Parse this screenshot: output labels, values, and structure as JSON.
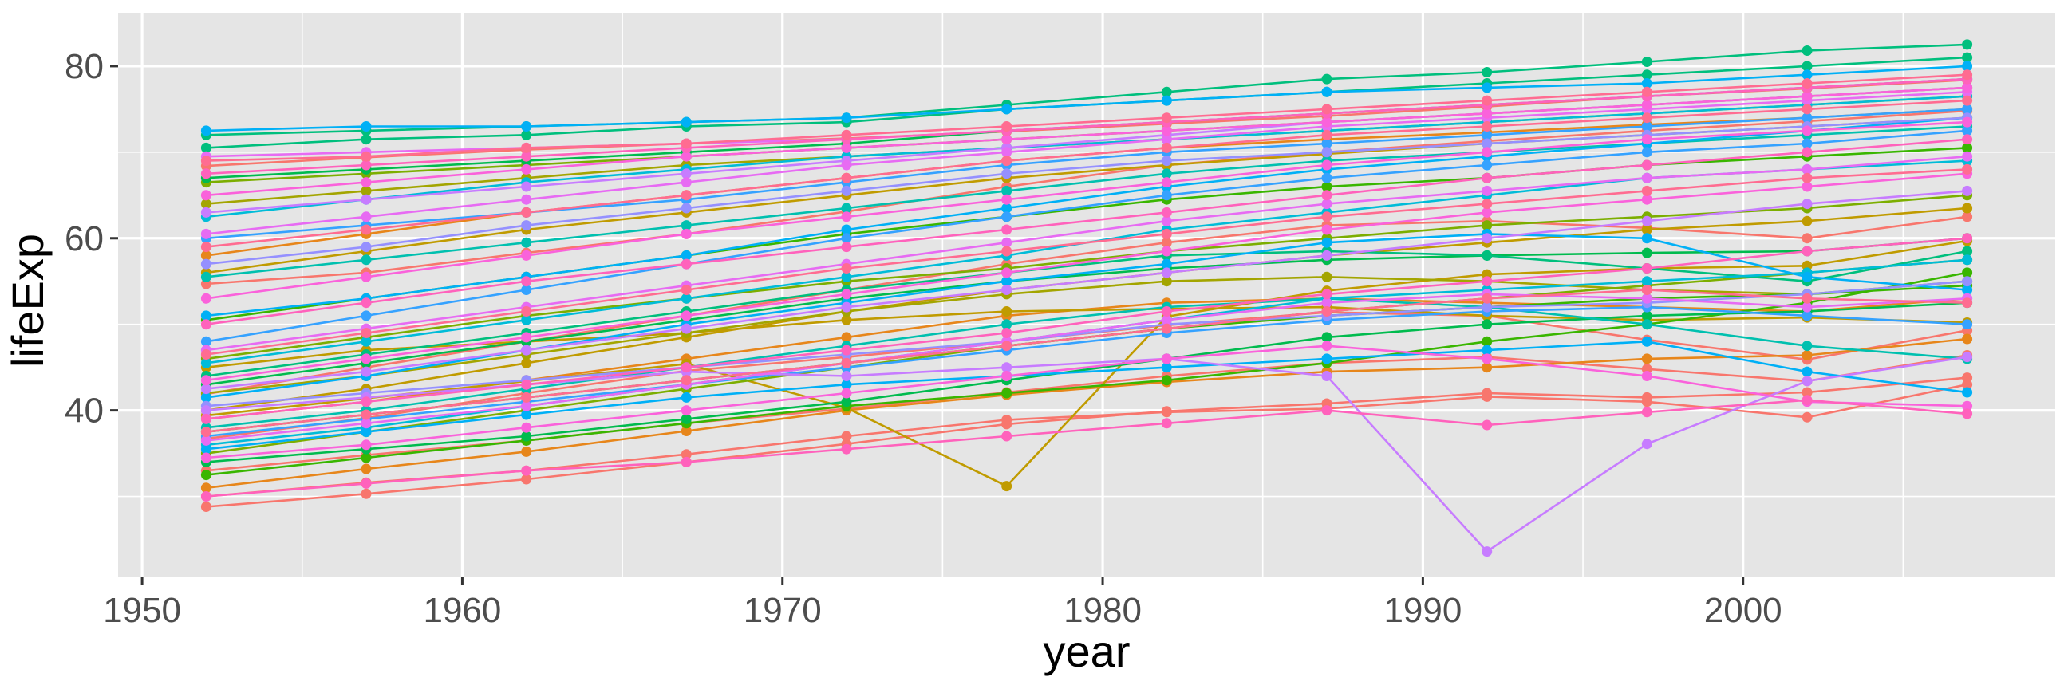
{
  "chart_data": {
    "type": "line",
    "title": "",
    "xlabel": "year",
    "ylabel": "lifeExp",
    "xlim": [
      1949.25,
      2009.75
    ],
    "ylim": [
      20.6,
      86.2
    ],
    "x_ticks": [
      1950,
      1960,
      1970,
      1980,
      1990,
      2000
    ],
    "x_tick_labels": [
      "1950",
      "1960",
      "1970",
      "1980",
      "1990",
      "2000"
    ],
    "y_ticks": [
      40,
      60,
      80
    ],
    "y_tick_labels": [
      "40",
      "60",
      "80"
    ],
    "x_minor_ticks": [
      1955,
      1965,
      1975,
      1985,
      1995,
      2005
    ],
    "y_minor_ticks": [
      30,
      50,
      70
    ],
    "grid": true,
    "legend": "none",
    "x": [
      1952,
      1957,
      1962,
      1967,
      1972,
      1977,
      1982,
      1987,
      1992,
      1997,
      2002,
      2007
    ],
    "panel_background": "#e5e5e5",
    "grid_color": "#ffffff",
    "series": [
      {
        "color": "#F8766D",
        "values": [
          28.8,
          30.3,
          32.0,
          34.0,
          36.1,
          38.4,
          39.9,
          40.8,
          42.0,
          41.5,
          42.1,
          43.8
        ]
      },
      {
        "color": "#F8766D",
        "values": [
          30.0,
          31.6,
          33.0,
          34.9,
          37.0,
          38.9,
          39.8,
          40.2,
          41.6,
          41.0,
          39.2,
          43.0
        ]
      },
      {
        "color": "#F8766D",
        "values": [
          33.0,
          34.8,
          36.5,
          38.5,
          40.2,
          42.1,
          44.0,
          45.5,
          46.2,
          44.8,
          43.4,
          46.4
        ]
      },
      {
        "color": "#F8766D",
        "values": [
          36.7,
          39.1,
          42.0,
          44.6,
          46.2,
          48.0,
          49.9,
          51.4,
          51.0,
          48.2,
          45.9,
          49.3
        ]
      },
      {
        "color": "#F8766D",
        "values": [
          41.9,
          45.0,
          48.0,
          51.0,
          54.0,
          57.0,
          59.5,
          61.5,
          62.0,
          61.2,
          60.0,
          62.5
        ]
      },
      {
        "color": "#F8766D",
        "values": [
          54.7,
          56.0,
          58.3,
          60.5,
          63.1,
          66.0,
          68.5,
          70.0,
          71.3,
          72.5,
          73.6,
          74.8
        ]
      },
      {
        "color": "#F8766D",
        "values": [
          68.4,
          69.4,
          70.3,
          71.0,
          71.6,
          72.4,
          73.3,
          74.2,
          75.3,
          76.5,
          77.4,
          78.4
        ]
      },
      {
        "color": "#E7861B",
        "values": [
          31.0,
          33.2,
          35.2,
          37.6,
          40.0,
          41.8,
          43.3,
          44.5,
          45.0,
          46.0,
          46.4,
          48.3
        ]
      },
      {
        "color": "#E7861B",
        "values": [
          39.0,
          41.0,
          43.5,
          46.0,
          48.5,
          51.0,
          52.5,
          53.0,
          52.5,
          52.0,
          51.5,
          53.0
        ]
      },
      {
        "color": "#E7861B",
        "values": [
          58.0,
          60.5,
          63.0,
          65.0,
          67.0,
          69.0,
          70.5,
          71.5,
          72.3,
          73.2,
          74.0,
          75.0
        ]
      },
      {
        "color": "#C09B00",
        "values": [
          39.4,
          41.4,
          43.4,
          45.4,
          40.3,
          31.2,
          50.9,
          53.9,
          55.8,
          56.5,
          56.8,
          59.7
        ]
      },
      {
        "color": "#C09B00",
        "values": [
          45.0,
          47.0,
          48.0,
          49.0,
          50.5,
          51.5,
          51.8,
          52.0,
          51.0,
          50.5,
          50.8,
          50.2
        ]
      },
      {
        "color": "#C09B00",
        "values": [
          56.0,
          58.5,
          61.0,
          63.0,
          65.0,
          67.0,
          68.5,
          69.8,
          71.0,
          72.0,
          73.0,
          74.0
        ]
      },
      {
        "color": "#C09B00",
        "values": [
          40.0,
          42.5,
          45.5,
          48.5,
          51.5,
          54.0,
          56.0,
          58.0,
          59.5,
          61.0,
          62.0,
          63.5
        ]
      },
      {
        "color": "#A3A500",
        "values": [
          42.0,
          44.0,
          46.5,
          49.0,
          51.5,
          53.5,
          55.0,
          55.5,
          55.0,
          54.0,
          53.5,
          55.0
        ]
      },
      {
        "color": "#A3A500",
        "values": [
          64.0,
          65.5,
          67.0,
          68.5,
          69.5,
          70.5,
          71.5,
          72.5,
          73.5,
          74.5,
          75.5,
          76.5
        ]
      },
      {
        "color": "#7CAE00",
        "values": [
          35.0,
          37.5,
          40.0,
          42.5,
          45.0,
          47.5,
          49.5,
          51.5,
          53.0,
          54.5,
          56.0,
          57.5
        ]
      },
      {
        "color": "#7CAE00",
        "values": [
          46.0,
          48.5,
          51.0,
          53.0,
          55.0,
          56.5,
          58.5,
          60.0,
          61.5,
          62.5,
          63.5,
          65.0
        ]
      },
      {
        "color": "#7CAE00",
        "values": [
          66.5,
          67.5,
          68.5,
          69.5,
          70.5,
          71.5,
          72.5,
          73.5,
          74.5,
          75.5,
          76.5,
          77.5
        ]
      },
      {
        "color": "#39B600",
        "values": [
          32.5,
          34.5,
          36.5,
          38.5,
          40.5,
          42.0,
          43.5,
          45.5,
          48.0,
          50.0,
          52.5,
          56.0
        ]
      },
      {
        "color": "#39B600",
        "values": [
          37.5,
          39.5,
          41.5,
          43.5,
          45.5,
          47.5,
          49.5,
          51.0,
          52.0,
          53.0,
          53.5,
          54.5
        ]
      },
      {
        "color": "#39B600",
        "values": [
          50.5,
          53.0,
          55.5,
          58.0,
          60.5,
          62.5,
          64.5,
          66.0,
          67.0,
          68.5,
          69.5,
          70.5
        ]
      },
      {
        "color": "#00BB4E",
        "values": [
          34.0,
          35.5,
          37.0,
          39.0,
          41.0,
          43.5,
          46.0,
          48.5,
          50.0,
          51.0,
          51.5,
          52.5
        ]
      },
      {
        "color": "#00BB4E",
        "values": [
          43.0,
          45.5,
          48.0,
          50.5,
          53.0,
          55.0,
          56.5,
          57.5,
          58.0,
          58.3,
          58.5,
          60.0
        ]
      },
      {
        "color": "#00BB4E",
        "values": [
          67.0,
          68.0,
          69.0,
          70.0,
          71.0,
          72.5,
          73.5,
          74.5,
          75.5,
          76.5,
          77.5,
          78.5
        ]
      },
      {
        "color": "#00BF7D",
        "values": [
          44.0,
          46.5,
          49.0,
          51.5,
          54.0,
          56.0,
          58.0,
          58.5,
          58.0,
          56.5,
          55.0,
          58.5
        ]
      },
      {
        "color": "#00BF7D",
        "values": [
          70.5,
          71.5,
          72.0,
          73.0,
          73.5,
          75.0,
          76.0,
          77.0,
          78.0,
          79.0,
          80.0,
          81.0
        ]
      },
      {
        "color": "#00BF7D",
        "values": [
          72.0,
          72.5,
          73.0,
          73.5,
          74.0,
          75.5,
          77.0,
          78.5,
          79.3,
          80.5,
          81.8,
          82.5
        ]
      },
      {
        "color": "#00C0AF",
        "values": [
          38.0,
          40.0,
          42.5,
          45.0,
          47.5,
          50.0,
          52.0,
          53.0,
          52.0,
          50.0,
          47.5,
          46.0
        ]
      },
      {
        "color": "#00C0AF",
        "values": [
          55.5,
          57.5,
          59.5,
          61.5,
          63.5,
          65.5,
          67.5,
          69.0,
          70.0,
          71.0,
          72.0,
          73.0
        ]
      },
      {
        "color": "#00BCD8",
        "values": [
          36.0,
          38.0,
          40.5,
          43.0,
          45.5,
          48.0,
          50.5,
          53.0,
          54.0,
          55.0,
          56.0,
          57.5
        ]
      },
      {
        "color": "#00BCD8",
        "values": [
          45.5,
          48.0,
          50.5,
          53.0,
          55.5,
          58.0,
          61.0,
          63.0,
          65.0,
          67.0,
          68.0,
          69.0
        ]
      },
      {
        "color": "#00BCD8",
        "values": [
          62.5,
          64.5,
          66.5,
          68.0,
          69.5,
          70.5,
          71.5,
          72.5,
          73.5,
          74.5,
          75.5,
          76.5
        ]
      },
      {
        "color": "#00B0F6",
        "values": [
          35.5,
          37.5,
          39.5,
          41.5,
          43.0,
          44.0,
          45.0,
          46.0,
          47.0,
          48.0,
          44.5,
          42.1
        ]
      },
      {
        "color": "#00B0F6",
        "values": [
          41.5,
          44.0,
          47.0,
          50.0,
          52.5,
          55.0,
          57.0,
          59.5,
          60.5,
          60.0,
          55.5,
          54.0
        ]
      },
      {
        "color": "#00B0F6",
        "values": [
          51.0,
          53.0,
          55.5,
          58.0,
          61.0,
          63.5,
          66.0,
          68.0,
          69.5,
          71.0,
          72.5,
          74.0
        ]
      },
      {
        "color": "#00B0F6",
        "values": [
          72.5,
          73.0,
          73.0,
          73.5,
          74.0,
          75.0,
          76.0,
          77.0,
          77.5,
          78.0,
          79.0,
          80.0
        ]
      },
      {
        "color": "#35A2FF",
        "values": [
          37.0,
          39.0,
          41.0,
          43.0,
          45.0,
          47.0,
          49.0,
          50.5,
          51.5,
          52.0,
          51.0,
          50.0
        ]
      },
      {
        "color": "#35A2FF",
        "values": [
          48.0,
          51.0,
          54.0,
          57.0,
          60.0,
          62.5,
          65.0,
          67.0,
          68.5,
          70.0,
          71.0,
          72.5
        ]
      },
      {
        "color": "#35A2FF",
        "values": [
          60.0,
          61.5,
          63.0,
          64.5,
          66.5,
          68.5,
          70.0,
          71.0,
          72.0,
          73.0,
          74.0,
          75.0
        ]
      },
      {
        "color": "#9590FF",
        "values": [
          40.5,
          42.0,
          43.5,
          45.0,
          46.5,
          48.0,
          50.0,
          51.0,
          52.0,
          52.5,
          53.5,
          55.0
        ]
      },
      {
        "color": "#9590FF",
        "values": [
          57.0,
          59.0,
          61.5,
          63.5,
          65.5,
          67.5,
          69.0,
          70.0,
          71.0,
          72.0,
          73.0,
          74.0
        ]
      },
      {
        "color": "#C77CFF",
        "values": [
          40.0,
          41.5,
          43.0,
          44.5,
          44.0,
          45.0,
          46.0,
          44.0,
          23.6,
          36.1,
          43.4,
          46.2
        ]
      },
      {
        "color": "#C77CFF",
        "values": [
          42.5,
          44.5,
          47.0,
          49.5,
          52.0,
          54.0,
          56.0,
          58.0,
          60.0,
          62.0,
          64.0,
          65.5
        ]
      },
      {
        "color": "#C77CFF",
        "values": [
          63.0,
          64.5,
          66.0,
          67.5,
          69.0,
          70.5,
          72.0,
          73.5,
          74.5,
          75.5,
          76.5,
          77.5
        ]
      },
      {
        "color": "#E76BF3",
        "values": [
          36.5,
          38.5,
          40.5,
          43.0,
          45.5,
          48.0,
          50.5,
          52.5,
          53.5,
          53.0,
          52.0,
          53.0
        ]
      },
      {
        "color": "#E76BF3",
        "values": [
          47.0,
          49.5,
          52.0,
          54.5,
          57.0,
          59.5,
          62.0,
          64.0,
          65.5,
          67.0,
          68.0,
          69.5
        ]
      },
      {
        "color": "#E76BF3",
        "values": [
          60.5,
          62.5,
          64.5,
          66.5,
          68.5,
          70.0,
          71.5,
          73.0,
          74.0,
          75.0,
          76.0,
          77.0
        ]
      },
      {
        "color": "#E76BF3",
        "values": [
          69.5,
          70.0,
          70.5,
          71.0,
          71.5,
          72.5,
          73.5,
          74.5,
          75.5,
          76.5,
          77.5,
          78.5
        ]
      },
      {
        "color": "#FA62DB",
        "values": [
          34.5,
          36.0,
          38.0,
          40.0,
          42.0,
          44.0,
          46.0,
          47.5,
          46.0,
          44.0,
          41.0,
          40.5
        ]
      },
      {
        "color": "#FA62DB",
        "values": [
          43.5,
          46.0,
          48.5,
          51.0,
          53.5,
          56.0,
          58.5,
          61.0,
          63.0,
          64.5,
          66.0,
          67.5
        ]
      },
      {
        "color": "#FA62DB",
        "values": [
          53.0,
          55.5,
          58.0,
          60.5,
          62.5,
          64.5,
          66.5,
          68.5,
          70.0,
          71.5,
          72.5,
          73.5
        ]
      },
      {
        "color": "#FA62DB",
        "values": [
          65.0,
          66.5,
          68.0,
          69.5,
          70.5,
          71.5,
          72.5,
          73.5,
          74.5,
          75.5,
          76.5,
          77.5
        ]
      },
      {
        "color": "#FF62BC",
        "values": [
          30.0,
          31.5,
          33.0,
          34.0,
          35.5,
          37.0,
          38.5,
          40.0,
          38.3,
          39.8,
          41.2,
          39.6
        ]
      },
      {
        "color": "#FF62BC",
        "values": [
          39.0,
          41.0,
          43.0,
          45.0,
          47.0,
          49.0,
          51.5,
          53.5,
          55.0,
          56.5,
          58.5,
          60.0
        ]
      },
      {
        "color": "#FF62BC",
        "values": [
          50.0,
          52.5,
          55.0,
          57.0,
          59.0,
          61.0,
          63.0,
          65.0,
          67.0,
          68.5,
          70.0,
          71.5
        ]
      },
      {
        "color": "#FF62BC",
        "values": [
          67.5,
          68.5,
          69.5,
          70.5,
          71.5,
          72.5,
          73.5,
          74.5,
          75.5,
          76.5,
          77.5,
          78.5
        ]
      },
      {
        "color": "#FF6C91",
        "values": [
          37.5,
          39.5,
          41.5,
          43.5,
          45.5,
          47.5,
          49.5,
          51.5,
          53.0,
          54.0,
          53.0,
          52.5
        ]
      },
      {
        "color": "#FF6C91",
        "values": [
          46.5,
          49.0,
          51.5,
          54.0,
          56.5,
          58.5,
          60.5,
          62.5,
          64.0,
          65.5,
          67.0,
          68.0
        ]
      },
      {
        "color": "#FF6C91",
        "values": [
          59.0,
          61.0,
          63.0,
          65.0,
          67.0,
          69.0,
          70.5,
          72.0,
          73.0,
          74.0,
          75.0,
          76.0
        ]
      },
      {
        "color": "#FF6C91",
        "values": [
          69.0,
          69.5,
          70.5,
          71.0,
          72.0,
          73.0,
          74.0,
          75.0,
          76.0,
          77.0,
          78.0,
          79.0
        ]
      }
    ]
  }
}
